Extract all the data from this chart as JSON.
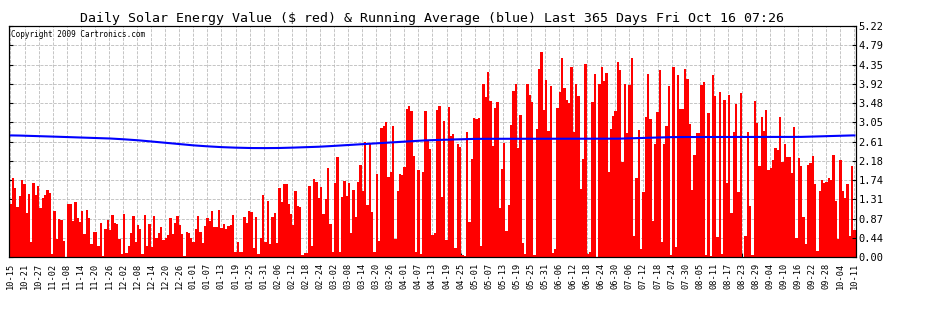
{
  "title": "Daily Solar Energy Value ($ red) & Running Average (blue) Last 365 Days Fri Oct 16 07:26",
  "copyright": "Copyright 2009 Cartronics.com",
  "yticks": [
    0.0,
    0.44,
    0.87,
    1.31,
    1.74,
    2.18,
    2.61,
    3.05,
    3.48,
    3.92,
    4.35,
    4.79,
    5.22
  ],
  "ymax": 5.22,
  "ymin": 0.0,
  "bar_color": "#FF0000",
  "avg_color": "#0000FF",
  "avg_linewidth": 1.5,
  "background_color": "#FFFFFF",
  "grid_color": "#BBBBBB",
  "x_labels": [
    "10-15",
    "10-21",
    "10-27",
    "11-02",
    "11-08",
    "11-14",
    "11-20",
    "11-26",
    "12-02",
    "12-08",
    "12-14",
    "12-20",
    "12-26",
    "01-01",
    "01-07",
    "01-13",
    "01-19",
    "01-25",
    "01-31",
    "02-06",
    "02-12",
    "02-18",
    "02-24",
    "03-02",
    "03-08",
    "03-14",
    "03-20",
    "03-26",
    "04-01",
    "04-07",
    "04-13",
    "04-19",
    "04-25",
    "05-01",
    "05-07",
    "05-13",
    "05-19",
    "05-25",
    "05-31",
    "06-06",
    "06-12",
    "06-18",
    "06-24",
    "06-30",
    "07-06",
    "07-12",
    "07-18",
    "07-24",
    "07-30",
    "08-05",
    "08-11",
    "08-17",
    "08-23",
    "08-29",
    "09-04",
    "09-10",
    "09-16",
    "09-22",
    "09-28",
    "10-04",
    "10-11"
  ],
  "n_days": 365,
  "avg_points": [
    2.76,
    2.75,
    2.74,
    2.73,
    2.72,
    2.71,
    2.7,
    2.69,
    2.67,
    2.65,
    2.62,
    2.59,
    2.56,
    2.53,
    2.51,
    2.49,
    2.48,
    2.47,
    2.47,
    2.47,
    2.48,
    2.49,
    2.5,
    2.52,
    2.54,
    2.56,
    2.58,
    2.6,
    2.62,
    2.64,
    2.65,
    2.66,
    2.67,
    2.68,
    2.68,
    2.68,
    2.68,
    2.68,
    2.68,
    2.68,
    2.68,
    2.68,
    2.68,
    2.68,
    2.69,
    2.7,
    2.71,
    2.72,
    2.72,
    2.72,
    2.72,
    2.72,
    2.72,
    2.72,
    2.72,
    2.72,
    2.72,
    2.73,
    2.74,
    2.75,
    2.76
  ]
}
